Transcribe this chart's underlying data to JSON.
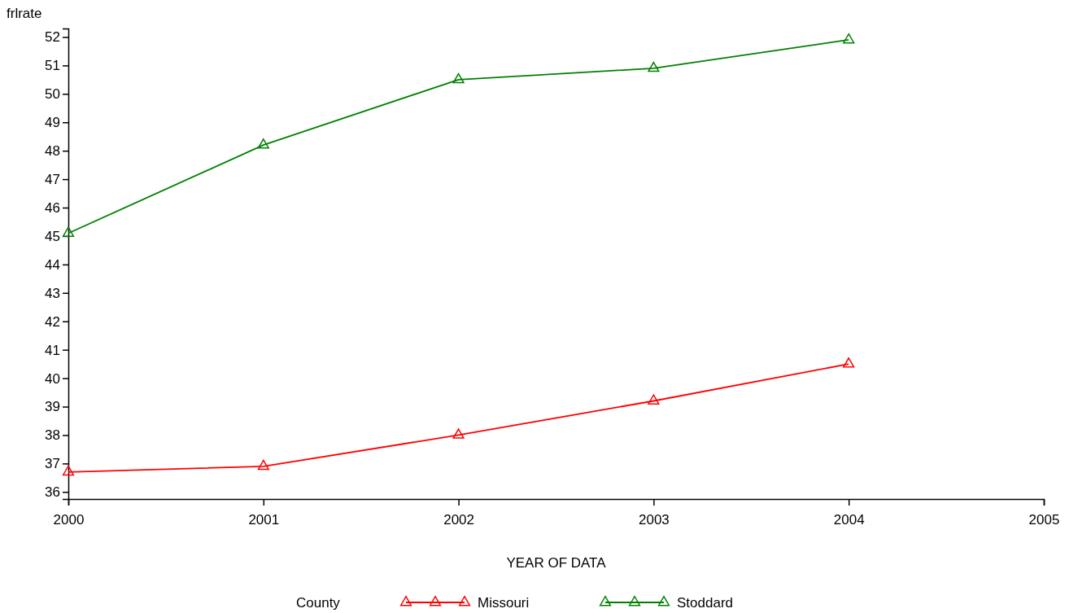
{
  "chart_data": {
    "type": "line",
    "xlabel": "YEAR OF DATA",
    "ylabel": "frlrate",
    "legend_title": "County",
    "x": [
      2000,
      2001,
      2002,
      2003,
      2004
    ],
    "series": [
      {
        "name": "Missouri",
        "color": "#ff0000",
        "values": [
          36.7,
          36.9,
          38.0,
          39.2,
          40.5
        ]
      },
      {
        "name": "Stoddard",
        "color": "#008000",
        "values": [
          45.1,
          48.2,
          50.5,
          50.9,
          51.9
        ]
      }
    ],
    "xlim": [
      2000,
      2005
    ],
    "xticks": [
      2000,
      2001,
      2002,
      2003,
      2004,
      2005
    ],
    "ylim": [
      35.75,
      52.3
    ],
    "yticks": [
      36,
      37,
      38,
      39,
      40,
      41,
      42,
      43,
      44,
      45,
      46,
      47,
      48,
      49,
      50,
      51,
      52
    ],
    "grid": false,
    "legend": "bottom",
    "marker": "triangle",
    "line_style": "solid"
  }
}
